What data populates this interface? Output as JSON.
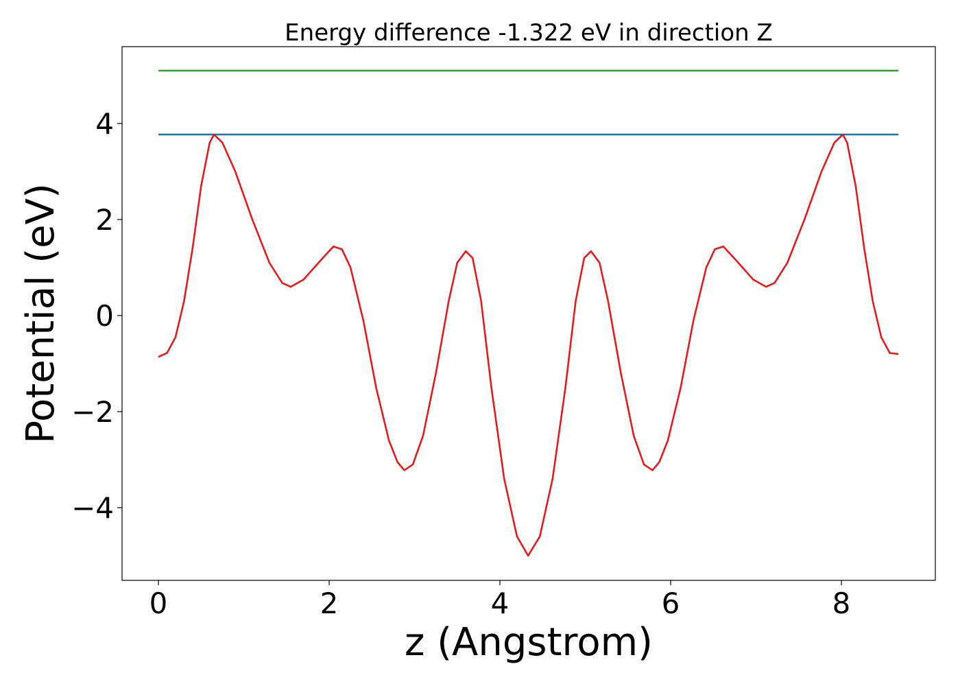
{
  "chart_data": {
    "type": "line",
    "title": "Energy difference -1.322 eV in direction Z",
    "xlabel": "z (Angstrom)",
    "ylabel": "Potential (eV)",
    "xlim": [
      -0.426,
      9.1
    ],
    "ylim": [
      -5.514,
      5.6
    ],
    "xticks": [
      0,
      2,
      4,
      6,
      8
    ],
    "yticks": [
      {
        "value": -4,
        "label": "−4"
      },
      {
        "value": -2,
        "label": "−2"
      },
      0,
      2,
      4
    ],
    "series": [
      {
        "color": "#2ca02c",
        "x": [
          0,
          8.667
        ],
        "values": [
          5.1,
          5.1
        ]
      },
      {
        "color": "#1f77b4",
        "x": [
          0,
          8.667
        ],
        "values": [
          3.77,
          3.77
        ]
      },
      {
        "color": "#e41a1c",
        "x": [
          0,
          0.1,
          0.2,
          0.3,
          0.4,
          0.5,
          0.6,
          0.65,
          0.75,
          0.9,
          1.1,
          1.3,
          1.45,
          1.55,
          1.7,
          1.9,
          2.05,
          2.15,
          2.25,
          2.4,
          2.55,
          2.7,
          2.8,
          2.88,
          2.98,
          3.1,
          3.25,
          3.4,
          3.5,
          3.6,
          3.68,
          3.78,
          3.9,
          4.05,
          4.2,
          4.33,
          4.467,
          4.617,
          4.767,
          4.887,
          4.987,
          5.067,
          5.167,
          5.267,
          5.417,
          5.567,
          5.687,
          5.787,
          5.867,
          5.967,
          6.117,
          6.267,
          6.417,
          6.517,
          6.617,
          6.767,
          6.967,
          7.117,
          7.217,
          7.367,
          7.567,
          7.767,
          7.917,
          8.017,
          8.067,
          8.167,
          8.267,
          8.367,
          8.467,
          8.567,
          8.667
        ],
        "values": [
          -0.86,
          -0.78,
          -0.45,
          0.3,
          1.4,
          2.7,
          3.6,
          3.77,
          3.6,
          3.0,
          2.0,
          1.1,
          0.68,
          0.6,
          0.75,
          1.15,
          1.44,
          1.38,
          1.0,
          -0.1,
          -1.5,
          -2.6,
          -3.05,
          -3.22,
          -3.1,
          -2.5,
          -1.2,
          0.3,
          1.1,
          1.34,
          1.2,
          0.3,
          -1.5,
          -3.4,
          -4.6,
          -5.0,
          -4.6,
          -3.4,
          -1.5,
          0.3,
          1.2,
          1.34,
          1.1,
          0.3,
          -1.2,
          -2.5,
          -3.1,
          -3.22,
          -3.05,
          -2.6,
          -1.5,
          -0.1,
          1.0,
          1.38,
          1.44,
          1.15,
          0.75,
          0.6,
          0.68,
          1.1,
          2.0,
          3.0,
          3.6,
          3.77,
          3.6,
          2.7,
          1.4,
          0.3,
          -0.45,
          -0.78,
          -0.8
        ]
      }
    ]
  }
}
